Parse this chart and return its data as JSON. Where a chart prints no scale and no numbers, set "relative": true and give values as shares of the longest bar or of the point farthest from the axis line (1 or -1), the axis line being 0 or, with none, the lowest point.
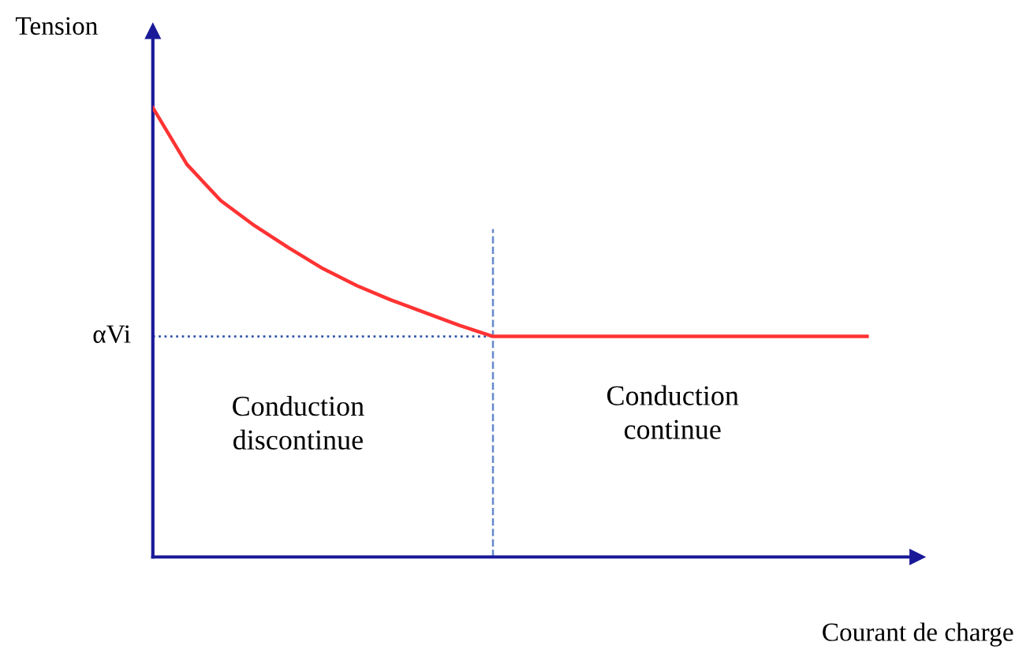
{
  "chart_data": {
    "type": "line",
    "relative": true,
    "ylabel": "Tension",
    "xlabel": "Courant de charge",
    "categories": [
      null,
      null,
      null,
      null,
      null,
      null,
      null,
      null,
      null,
      null,
      null,
      null,
      null,
      null,
      null,
      null,
      null,
      null,
      null,
      null,
      null,
      null
    ],
    "series": [
      {
        "color": "#ff3333",
        "values": [
          1.0,
          0.874,
          0.793,
          0.737,
          0.688,
          0.642,
          0.604,
          0.572,
          0.544,
          0.516,
          0.491,
          0.491,
          0.491,
          0.491,
          0.491,
          0.491,
          0.491,
          0.491,
          0.491,
          0.491,
          0.491,
          0.491
        ]
      }
    ],
    "ref_lines": [
      {
        "axis": "y",
        "value": 0.491,
        "label": "αVi",
        "color": "#3355aa",
        "line_style": "dotted"
      }
    ],
    "annotations": [
      "Conduction\ndiscontinue",
      "Conduction\ncontinue"
    ],
    "legend": false,
    "marker": "none",
    "line_style": "solid"
  }
}
